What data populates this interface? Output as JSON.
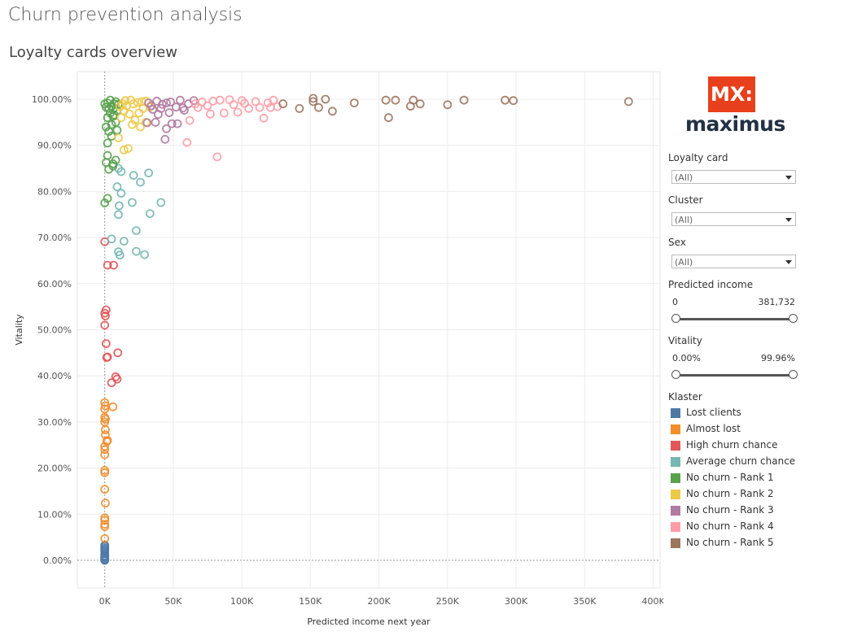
{
  "page": {
    "title": "Churn prevention analysis",
    "subtitle": "Loyalty cards overview"
  },
  "logo": {
    "mark": "MX:",
    "word": "maximus"
  },
  "filters": {
    "loyalty_card": {
      "label": "Loyalty card",
      "value": "(All)"
    },
    "cluster": {
      "label": "Cluster",
      "value": "(All)"
    },
    "sex": {
      "label": "Sex",
      "value": "(All)"
    },
    "predicted_income": {
      "label": "Predicted income",
      "min": "0",
      "max": "381,732"
    },
    "vitality": {
      "label": "Vitality",
      "min": "0.00%",
      "max": "99.96%"
    }
  },
  "legend": {
    "title": "Klaster",
    "items": [
      {
        "label": "Lost clients",
        "color": "#4e79a7"
      },
      {
        "label": "Almost lost",
        "color": "#f28e2b"
      },
      {
        "label": "High churn chance",
        "color": "#e15759"
      },
      {
        "label": "Average churn chance",
        "color": "#76b7b2"
      },
      {
        "label": "No churn - Rank 1",
        "color": "#59a14f"
      },
      {
        "label": "No churn - Rank 2",
        "color": "#edc948"
      },
      {
        "label": "No churn - Rank 3",
        "color": "#b07aa1"
      },
      {
        "label": "No churn - Rank 4",
        "color": "#ff9da7"
      },
      {
        "label": "No churn - Rank 5",
        "color": "#9c755f"
      }
    ]
  },
  "chart_data": {
    "type": "scatter",
    "xlabel": "Predicted income next year",
    "ylabel": "Vitality",
    "xlim": [
      -20000,
      405000
    ],
    "ylim": [
      -6,
      106
    ],
    "x_ticks": [
      0,
      50000,
      100000,
      150000,
      200000,
      250000,
      300000,
      350000,
      400000
    ],
    "x_tick_labels": [
      "0K",
      "50K",
      "100K",
      "150K",
      "200K",
      "250K",
      "300K",
      "350K",
      "400K"
    ],
    "y_ticks": [
      0,
      10,
      20,
      30,
      40,
      50,
      60,
      70,
      80,
      90,
      100
    ],
    "y_tick_labels": [
      "0.00%",
      "10.00%",
      "20.00%",
      "30.00%",
      "40.00%",
      "50.00%",
      "60.00%",
      "70.00%",
      "80.00%",
      "90.00%",
      "100.00%"
    ],
    "grid": true,
    "marker": "open-circle",
    "series": [
      {
        "name": "Lost clients",
        "color": "#4e79a7",
        "points": [
          [
            0,
            0
          ],
          [
            0,
            0.3
          ],
          [
            0,
            0.6
          ],
          [
            0,
            1
          ],
          [
            0,
            1.4
          ],
          [
            0,
            2
          ],
          [
            0,
            2.6
          ],
          [
            0,
            3
          ],
          [
            0,
            3.3
          ],
          [
            0,
            0.1
          ],
          [
            0,
            0.8
          ],
          [
            0,
            2.3
          ]
        ]
      },
      {
        "name": "Almost lost",
        "color": "#f28e2b",
        "points": [
          [
            0,
            4.7
          ],
          [
            0,
            7.3
          ],
          [
            0,
            7.8
          ],
          [
            0,
            8.7
          ],
          [
            0,
            9.2
          ],
          [
            500,
            12.4
          ],
          [
            0,
            15.4
          ],
          [
            0,
            19
          ],
          [
            0,
            19.5
          ],
          [
            0,
            22.9
          ],
          [
            0,
            24
          ],
          [
            0,
            24.7
          ],
          [
            1500,
            25.8
          ],
          [
            2000,
            26
          ],
          [
            500,
            27.2
          ],
          [
            500,
            28.3
          ],
          [
            0,
            30
          ],
          [
            500,
            30.6
          ],
          [
            0,
            31
          ],
          [
            0,
            32.8
          ],
          [
            500,
            33.5
          ],
          [
            0,
            34.2
          ],
          [
            6000,
            33.3
          ]
        ]
      },
      {
        "name": "High churn chance",
        "color": "#e15759",
        "points": [
          [
            9000,
            39.3
          ],
          [
            8000,
            39.8
          ],
          [
            5000,
            38.5
          ],
          [
            9500,
            45
          ],
          [
            1500,
            44
          ],
          [
            2000,
            44.1
          ],
          [
            1000,
            47
          ],
          [
            0,
            51
          ],
          [
            500,
            53
          ],
          [
            0,
            53.6
          ],
          [
            1000,
            54.3
          ],
          [
            2000,
            64
          ],
          [
            6500,
            64
          ],
          [
            0,
            69.1
          ]
        ]
      },
      {
        "name": "Average churn chance",
        "color": "#76b7b2",
        "points": [
          [
            5000,
            69.7
          ],
          [
            11000,
            66.2
          ],
          [
            10000,
            66.9
          ],
          [
            23000,
            67
          ],
          [
            29000,
            66.3
          ],
          [
            14000,
            69.2
          ],
          [
            23000,
            71.5
          ],
          [
            10000,
            75
          ],
          [
            10500,
            76.9
          ],
          [
            33000,
            75.2
          ],
          [
            41000,
            77.6
          ],
          [
            20000,
            77.6
          ],
          [
            12000,
            79.6
          ],
          [
            9000,
            81
          ],
          [
            26000,
            82
          ],
          [
            32000,
            84
          ],
          [
            21000,
            83.5
          ],
          [
            12000,
            84.3
          ],
          [
            10000,
            85
          ]
        ]
      },
      {
        "name": "No churn - Rank 1",
        "color": "#59a14f",
        "points": [
          [
            0,
            77.5
          ],
          [
            2000,
            78.5
          ],
          [
            3000,
            84.8
          ],
          [
            6000,
            86
          ],
          [
            6000,
            85.5
          ],
          [
            8000,
            86.8
          ],
          [
            1000,
            86.3
          ],
          [
            2000,
            87.8
          ],
          [
            5000,
            92
          ],
          [
            2000,
            90.5
          ],
          [
            3000,
            93
          ],
          [
            9000,
            93.3
          ],
          [
            1000,
            94
          ],
          [
            5000,
            94.5
          ],
          [
            8000,
            95
          ],
          [
            2000,
            96
          ],
          [
            6000,
            96.3
          ],
          [
            4000,
            97
          ],
          [
            9000,
            97.5
          ],
          [
            3000,
            98
          ],
          [
            5000,
            98.5
          ],
          [
            7000,
            99
          ],
          [
            2000,
            99.2
          ],
          [
            8000,
            99.5
          ],
          [
            10000,
            98.9
          ],
          [
            4000,
            99.8
          ],
          [
            6000,
            97.8
          ],
          [
            1000,
            98.3
          ],
          [
            0,
            99
          ],
          [
            7000,
            96.6
          ]
        ]
      },
      {
        "name": "No churn - Rank 2",
        "color": "#edc948",
        "points": [
          [
            10000,
            91.6
          ],
          [
            14000,
            89
          ],
          [
            17000,
            89.3
          ],
          [
            20000,
            94.5
          ],
          [
            26000,
            94
          ],
          [
            22000,
            95.5
          ],
          [
            30000,
            95
          ],
          [
            12000,
            96
          ],
          [
            18000,
            96.8
          ],
          [
            25000,
            97
          ],
          [
            14000,
            97.5
          ],
          [
            28000,
            98
          ],
          [
            33000,
            98.3
          ],
          [
            16000,
            98.6
          ],
          [
            21000,
            99
          ],
          [
            24000,
            99.3
          ],
          [
            30000,
            99.6
          ],
          [
            19000,
            99.8
          ],
          [
            13000,
            99
          ],
          [
            27000,
            99.5
          ],
          [
            11000,
            98.4
          ],
          [
            15000,
            99.7
          ]
        ]
      },
      {
        "name": "No churn - Rank 3",
        "color": "#b07aa1",
        "points": [
          [
            44000,
            91.3
          ],
          [
            45000,
            93.6
          ],
          [
            49000,
            94.7
          ],
          [
            53000,
            94.7
          ],
          [
            37000,
            95
          ],
          [
            31000,
            94.9
          ],
          [
            39000,
            96.7
          ],
          [
            47000,
            97.1
          ],
          [
            35000,
            97.8
          ],
          [
            58000,
            97.6
          ],
          [
            41000,
            98
          ],
          [
            52000,
            98.3
          ],
          [
            34000,
            98.6
          ],
          [
            61000,
            99
          ],
          [
            45000,
            99.2
          ],
          [
            38000,
            99.6
          ],
          [
            55000,
            99.8
          ],
          [
            48000,
            99.4
          ],
          [
            42000,
            98.9
          ],
          [
            65000,
            99.7
          ],
          [
            32000,
            99.2
          ],
          [
            57000,
            98.1
          ]
        ]
      },
      {
        "name": "No churn - Rank 4",
        "color": "#ff9da7",
        "points": [
          [
            82000,
            87.5
          ],
          [
            60000,
            90.6
          ],
          [
            116000,
            95.9
          ],
          [
            62000,
            95.4
          ],
          [
            77000,
            96.8
          ],
          [
            87000,
            97
          ],
          [
            97000,
            97.2
          ],
          [
            105000,
            98
          ],
          [
            113000,
            98.2
          ],
          [
            121000,
            98.2
          ],
          [
            126000,
            98.4
          ],
          [
            94000,
            98.8
          ],
          [
            102000,
            99.1
          ],
          [
            119000,
            99.2
          ],
          [
            123000,
            99.8
          ],
          [
            66000,
            99
          ],
          [
            71000,
            99.4
          ],
          [
            79000,
            99.6
          ],
          [
            84000,
            99.8
          ],
          [
            91000,
            99.9
          ],
          [
            75000,
            98.6
          ],
          [
            68000,
            98.2
          ],
          [
            100000,
            99.7
          ],
          [
            110000,
            99.5
          ]
        ]
      },
      {
        "name": "No churn - Rank 5",
        "color": "#9c755f",
        "points": [
          [
            130000,
            99
          ],
          [
            142000,
            98
          ],
          [
            152000,
            99.5
          ],
          [
            156000,
            98.2
          ],
          [
            161000,
            100
          ],
          [
            152000,
            100.2
          ],
          [
            166000,
            97.4
          ],
          [
            182000,
            99.2
          ],
          [
            205000,
            99.8
          ],
          [
            207000,
            96
          ],
          [
            212000,
            99.8
          ],
          [
            223000,
            98.5
          ],
          [
            225000,
            99.8
          ],
          [
            230000,
            99
          ],
          [
            250000,
            98.8
          ],
          [
            262000,
            99.8
          ],
          [
            292000,
            99.8
          ],
          [
            298000,
            99.7
          ],
          [
            382000,
            99.5
          ]
        ]
      }
    ]
  }
}
